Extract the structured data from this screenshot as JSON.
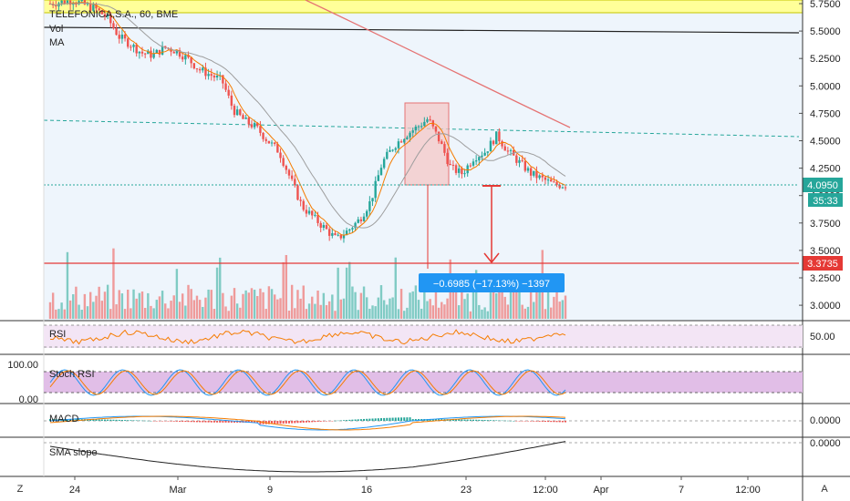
{
  "header": {
    "symbol": "TELEFONICA,S.A., 60, BME",
    "vol_label": "Vol",
    "ma_label": "MA"
  },
  "price_axis": {
    "ticks": [
      "5.7500",
      "5.5000",
      "5.2500",
      "5.0000",
      "4.7500",
      "4.5000",
      "4.2500",
      "4.0000",
      "3.7500",
      "3.5000",
      "3.2500",
      "3.0000"
    ],
    "last_price": "4.0950",
    "countdown": "35:33",
    "target_price": "3.3735"
  },
  "measure_label": "−0.6985 (−17.13%) −1397",
  "time_axis": {
    "ticks": [
      "24",
      "Mar",
      "9",
      "16",
      "23",
      "12:00",
      "Apr",
      "7",
      "12:00"
    ],
    "left_button": "Z",
    "right_button": "A"
  },
  "indicators": {
    "rsi": {
      "label": "RSI",
      "tick": "50.00"
    },
    "stoch": {
      "label": "Stoch RSI",
      "tick_top": "100.00",
      "tick_bottom": "0.00"
    },
    "macd": {
      "label": "MACD",
      "tick": "0.0000"
    },
    "sma_slope": {
      "label": "SMA slope",
      "tick": "0.0000"
    }
  },
  "colors": {
    "up": "#26a69a",
    "down": "#ef5350",
    "highlight": "#ffff99",
    "rect": "#f4c7c7",
    "ma_fast": "#f57c00",
    "ma_slow": "#9e9e9e",
    "ma_long": "#e57373",
    "last": "#26a69a",
    "target": "#e53935",
    "measure": "#2196f3",
    "rsi_bg": "#f3e5f5",
    "stoch_bg": "#e1bee7"
  },
  "chart_data": {
    "type": "line",
    "title": "TELEFONICA,S.A., 60, BME",
    "ylim": [
      2.85,
      5.8
    ],
    "x": [
      "24",
      "Mar",
      "9",
      "16",
      "23",
      "12:00",
      "Apr"
    ],
    "close_path": [
      [
        0,
        5.75
      ],
      [
        4,
        5.78
      ],
      [
        8,
        5.7
      ],
      [
        10,
        5.62
      ],
      [
        12,
        5.45
      ],
      [
        14,
        5.38
      ],
      [
        16,
        5.3
      ],
      [
        18,
        5.28
      ],
      [
        20,
        5.35
      ],
      [
        22,
        5.32
      ],
      [
        24,
        5.25
      ],
      [
        26,
        5.15
      ],
      [
        28,
        5.1
      ],
      [
        30,
        5.05
      ],
      [
        32,
        4.78
      ],
      [
        34,
        4.68
      ],
      [
        36,
        4.62
      ],
      [
        38,
        4.5
      ],
      [
        40,
        4.4
      ],
      [
        42,
        4.15
      ],
      [
        44,
        3.9
      ],
      [
        46,
        3.8
      ],
      [
        48,
        3.7
      ],
      [
        50,
        3.6
      ],
      [
        52,
        3.68
      ],
      [
        54,
        3.78
      ],
      [
        56,
        3.95
      ],
      [
        58,
        4.3
      ],
      [
        60,
        4.45
      ],
      [
        62,
        4.55
      ],
      [
        64,
        4.62
      ],
      [
        66,
        4.7
      ],
      [
        68,
        4.5
      ],
      [
        70,
        4.25
      ],
      [
        72,
        4.2
      ],
      [
        74,
        4.35
      ],
      [
        76,
        4.4
      ],
      [
        78,
        4.55
      ],
      [
        80,
        4.4
      ],
      [
        82,
        4.3
      ],
      [
        84,
        4.2
      ],
      [
        86,
        4.15
      ],
      [
        88,
        4.1
      ],
      [
        90,
        4.095
      ]
    ],
    "annotations": {
      "last_price": 4.095,
      "target_price": 3.3735,
      "change": "−0.6985 (−17.13%) −1397"
    }
  }
}
